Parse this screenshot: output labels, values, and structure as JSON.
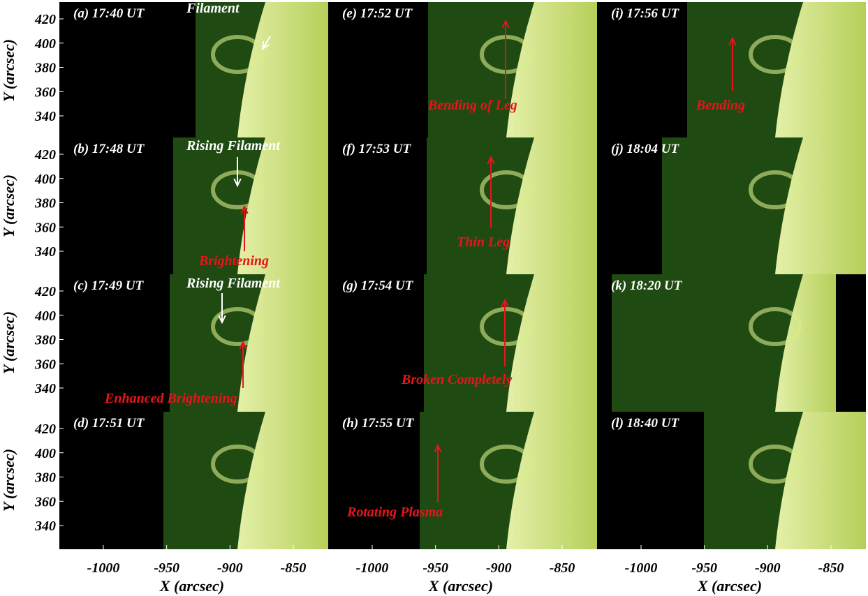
{
  "y_axis": {
    "label": "Y (arcsec)",
    "ticks": [
      420,
      400,
      380,
      360,
      340
    ]
  },
  "x_axis": {
    "label": "X (arcsec)",
    "ticks": [
      -1000,
      -950,
      -900,
      -850
    ]
  },
  "panels": [
    {
      "label": "(a) 17:40 UT",
      "annotations": [
        {
          "text": "Filament",
          "color": "#ffffff"
        }
      ]
    },
    {
      "label": "(b) 17:48 UT",
      "annotations": [
        {
          "text": "Rising Filament",
          "color": "#ffffff"
        },
        {
          "text": "Brightening",
          "color": "#e8141c"
        }
      ]
    },
    {
      "label": "(c) 17:49 UT",
      "annotations": [
        {
          "text": "Rising Filament",
          "color": "#ffffff"
        },
        {
          "text": "Enhanced Brightening",
          "color": "#e8141c"
        }
      ]
    },
    {
      "label": "(d) 17:51 UT",
      "annotations": []
    },
    {
      "label": "(e) 17:52 UT",
      "annotations": [
        {
          "text": "Bending of Leg",
          "color": "#e8141c"
        }
      ]
    },
    {
      "label": "(f) 17:53 UT",
      "annotations": [
        {
          "text": "Thin Leg",
          "color": "#e8141c"
        }
      ]
    },
    {
      "label": "(g) 17:54 UT",
      "annotations": [
        {
          "text": "Broken Completely",
          "color": "#e8141c"
        }
      ]
    },
    {
      "label": "(h) 17:55 UT",
      "annotations": [
        {
          "text": "Rotating Plasma",
          "color": "#e8141c"
        }
      ]
    },
    {
      "label": "(i) 17:56 UT",
      "annotations": [
        {
          "text": "Bending",
          "color": "#e8141c"
        }
      ]
    },
    {
      "label": "(j) 18:04 UT",
      "annotations": []
    },
    {
      "label": "(k) 18:20 UT",
      "annotations": []
    },
    {
      "label": "(l) 18:40 UT",
      "annotations": []
    }
  ]
}
